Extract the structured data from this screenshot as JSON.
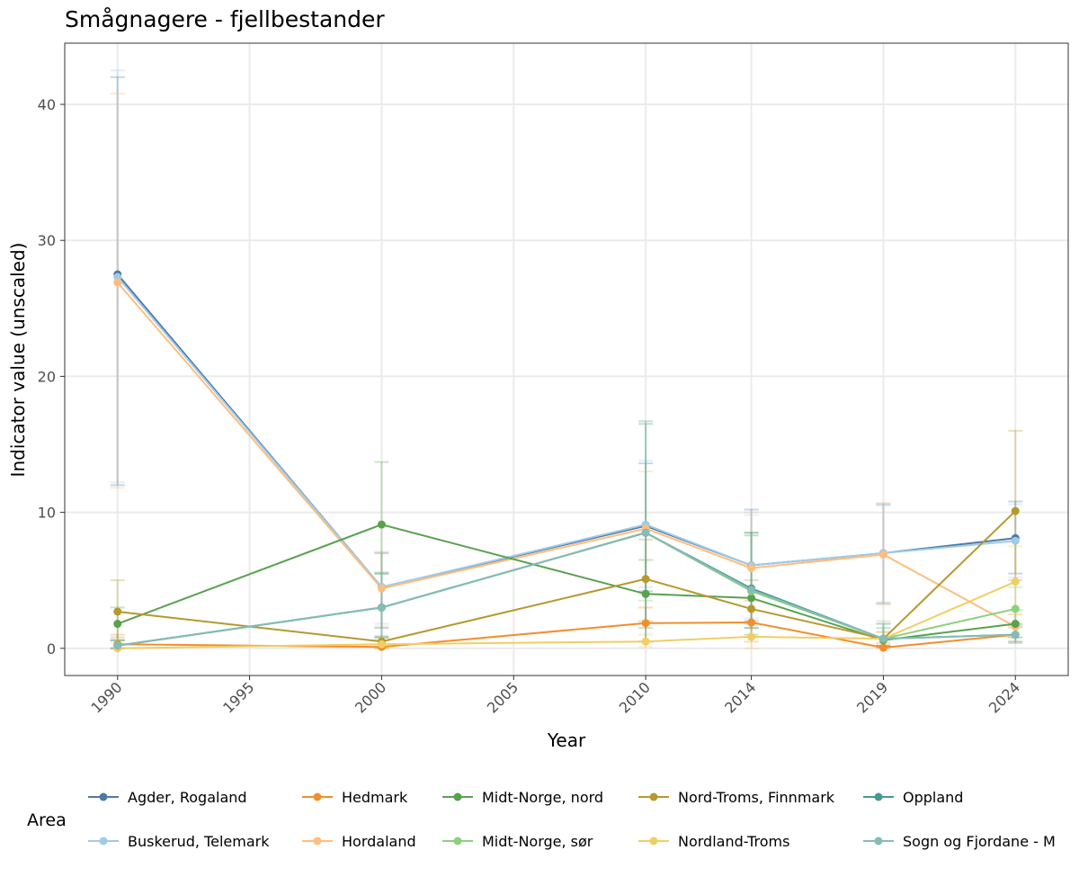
{
  "chart_data": {
    "type": "line",
    "title": "Smågnagere - fjellbestander",
    "xlabel": "Year",
    "ylabel": "Indicator value (unscaled)",
    "x": [
      1990,
      2000,
      2010,
      2014,
      2019,
      2024
    ],
    "x_ticks": [
      1990,
      1995,
      2000,
      2005,
      2010,
      2014,
      2019,
      2024
    ],
    "y_ticks": [
      0,
      10,
      20,
      30,
      40
    ],
    "xlim": [
      1988,
      2026
    ],
    "ylim": [
      -2,
      44.5
    ],
    "grid": true,
    "legend_title": "Area",
    "legend_position": "bottom",
    "series": [
      {
        "name": "Agder, Rogaland",
        "color": "#4e79a7",
        "values": [
          27.5,
          4.5,
          9.0,
          6.1,
          7.0,
          8.1
        ],
        "lower": [
          12,
          1.5,
          4.2,
          2.0,
          3.3,
          5.5
        ],
        "upper": [
          42,
          7.0,
          13.6,
          10.2,
          10.6,
          10.8
        ]
      },
      {
        "name": "Buskerud, Telemark",
        "color": "#a0cbe8",
        "values": [
          27.3,
          4.5,
          9.1,
          6.1,
          7.0,
          7.9
        ],
        "lower": [
          12.2,
          1.8,
          4.5,
          2.2,
          3.4,
          5.2
        ],
        "upper": [
          42.5,
          7.1,
          13.8,
          10.0,
          10.5,
          10.6
        ]
      },
      {
        "name": "Hedmark",
        "color": "#f28e2b",
        "values": [
          0.3,
          0.1,
          1.85,
          1.9,
          0.05,
          1.0
        ],
        "lower": [
          0.0,
          0.0,
          0.5,
          0.5,
          0.0,
          0.5
        ],
        "upper": [
          1.0,
          0.6,
          3.0,
          3.5,
          0.4,
          1.6
        ]
      },
      {
        "name": "Hordaland",
        "color": "#ffbe7d",
        "values": [
          26.9,
          4.4,
          8.8,
          5.9,
          6.9,
          1.6
        ],
        "lower": [
          11.8,
          1.6,
          4.0,
          1.8,
          3.2,
          0.8
        ],
        "upper": [
          40.8,
          7.0,
          13.0,
          9.8,
          10.7,
          2.5
        ]
      },
      {
        "name": "Midt-Norge, nord",
        "color": "#59a14f",
        "values": [
          1.8,
          9.1,
          4.0,
          3.7,
          0.6,
          1.8
        ],
        "lower": [
          0.6,
          5.5,
          1.5,
          1.0,
          0.1,
          0.8
        ],
        "upper": [
          3.0,
          13.7,
          6.5,
          8.5,
          1.5,
          2.8
        ]
      },
      {
        "name": "Midt-Norge, sør",
        "color": "#8cd17d",
        "values": [
          0.2,
          3.0,
          8.5,
          4.2,
          0.7,
          2.9
        ],
        "lower": [
          0.0,
          0.8,
          3.5,
          1.5,
          0.2,
          1.5
        ],
        "upper": [
          0.6,
          5.6,
          16.5,
          8.3,
          2.0,
          4.5
        ]
      },
      {
        "name": "Nord-Troms, Finnmark",
        "color": "#b6992d",
        "values": [
          2.7,
          0.5,
          5.1,
          2.9,
          0.7,
          10.1
        ],
        "lower": [
          0.8,
          0.1,
          2.0,
          0.8,
          0.2,
          5.0
        ],
        "upper": [
          5.0,
          0.9,
          8.0,
          5.0,
          1.2,
          16.0
        ]
      },
      {
        "name": "Nordland-Troms",
        "color": "#f1ce63",
        "values": [
          0.0,
          0.3,
          0.5,
          0.85,
          0.7,
          4.9
        ],
        "lower": [
          0.0,
          0.0,
          0.1,
          0.0,
          0.2,
          2.5
        ],
        "upper": [
          0.4,
          0.8,
          1.0,
          1.8,
          1.2,
          7.5
        ]
      },
      {
        "name": "Oppland",
        "color": "#499894",
        "values": [
          0.2,
          3.0,
          8.5,
          4.4,
          0.7,
          1.0
        ],
        "lower": [
          0.0,
          0.8,
          0.5,
          1.5,
          0.2,
          0.4
        ],
        "upper": [
          0.6,
          5.5,
          16.7,
          8.5,
          1.8,
          1.8
        ]
      },
      {
        "name": "Sogn og Fjordane - M",
        "color": "#86bcb6",
        "values": [
          0.2,
          3.0,
          8.5,
          4.3,
          0.7,
          1.0
        ],
        "lower": [
          0.0,
          0.8,
          0.5,
          1.5,
          0.2,
          0.5
        ],
        "upper": [
          0.6,
          5.5,
          16.5,
          8.3,
          1.8,
          1.7
        ]
      }
    ]
  }
}
